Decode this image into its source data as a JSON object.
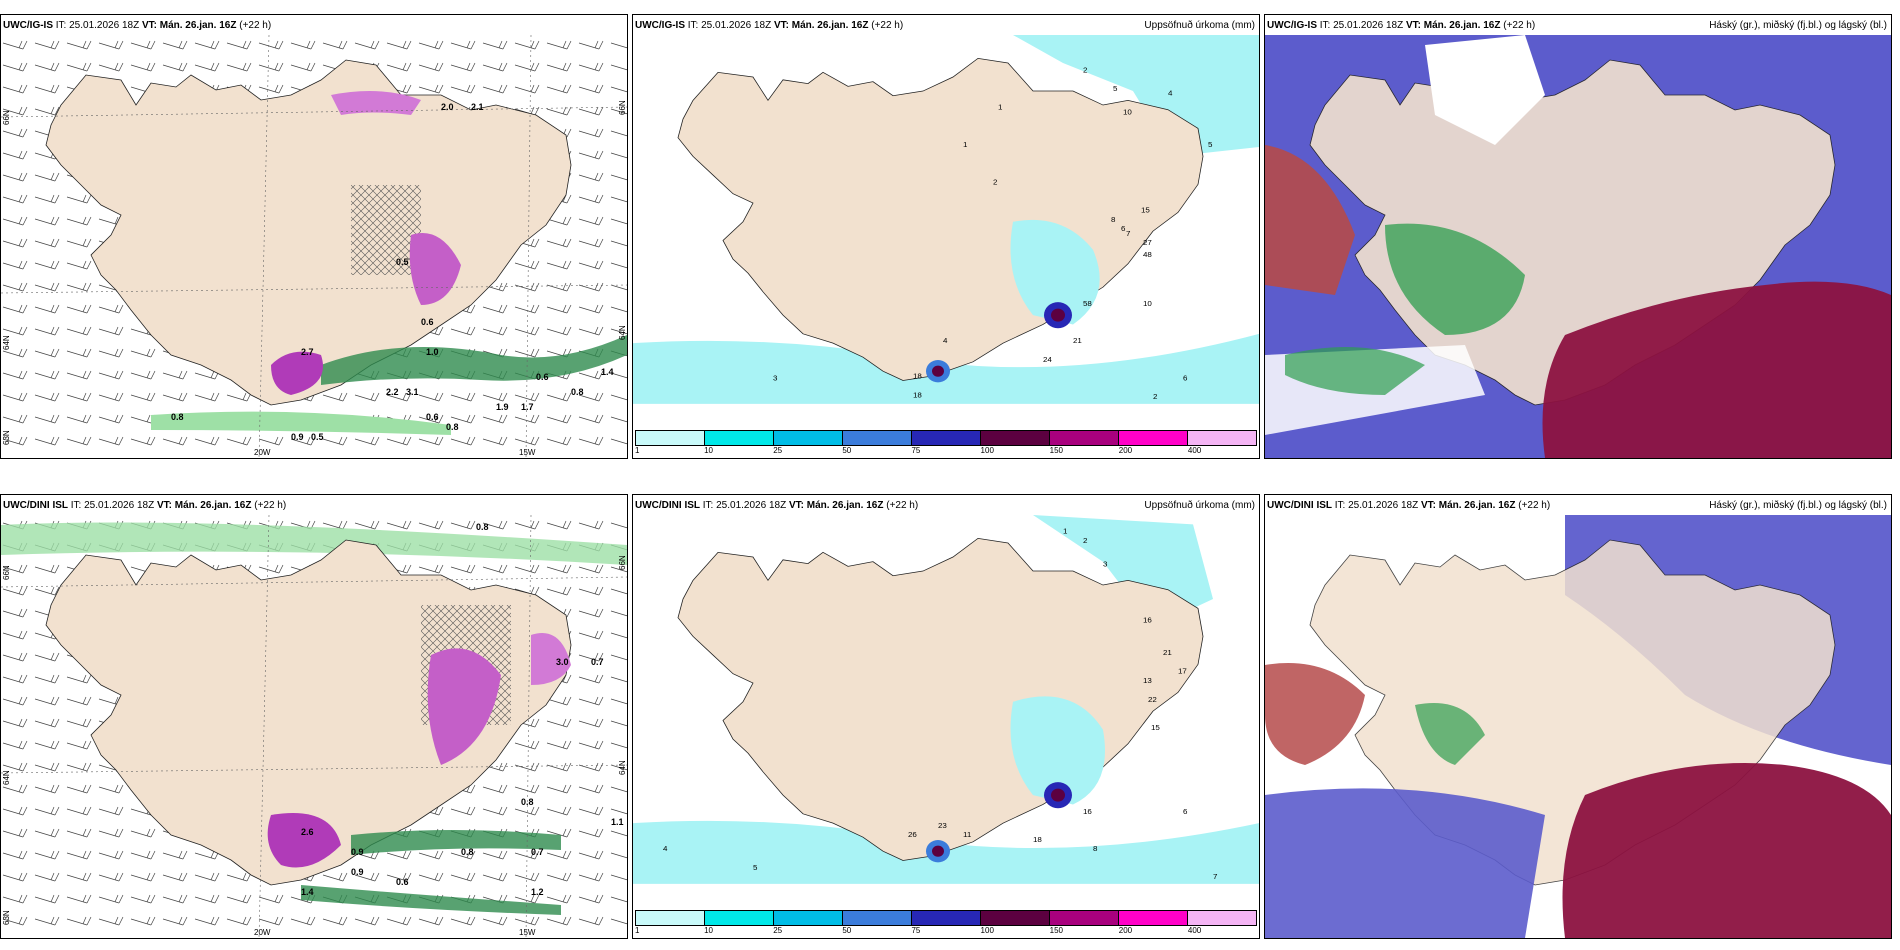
{
  "panels": [
    {
      "model": "UWC/IG-IS",
      "it_label": "IT:",
      "it": "25.01.2026 18Z",
      "vt_label": "VT:",
      "vt": "Mán. 26.jan. 16Z",
      "lead": "(+22 h)",
      "right": "",
      "axis": {
        "lat1": "66N",
        "lat2": "64N",
        "lat3": "63N",
        "lon1": "20W",
        "lon2": "15W",
        "latr": "66N",
        "latr2": "64N"
      }
    },
    {
      "model": "UWC/IG-IS",
      "it_label": "IT:",
      "it": "25.01.2026 18Z",
      "vt_label": "VT:",
      "vt": "Mán. 26.jan. 16Z",
      "lead": "(+22 h)",
      "right": "Uppsöfnuð úrkoma (mm)"
    },
    {
      "model": "UWC/IG-IS",
      "it_label": "IT:",
      "it": "25.01.2026 18Z",
      "vt_label": "VT:",
      "vt": "Mán. 26.jan. 16Z",
      "lead": "(+22 h)",
      "right": "Háský (gr.), miðský (fj.bl.) og lágský (bl.)"
    },
    {
      "model": "UWC/DINI ISL",
      "it_label": "IT:",
      "it": "25.01.2026 18Z",
      "vt_label": "VT:",
      "vt": "Mán. 26.jan. 16Z",
      "lead": "(+22 h)",
      "right": "",
      "axis": {
        "lat1": "66N",
        "lat2": "64N",
        "lat3": "63N",
        "lon1": "20W",
        "lon2": "15W",
        "latr": "66N",
        "latr2": "64N"
      }
    },
    {
      "model": "UWC/DINI ISL",
      "it_label": "IT:",
      "it": "25.01.2026 18Z",
      "vt_label": "VT:",
      "vt": "Mán. 26.jan. 16Z",
      "lead": "(+22 h)",
      "right": "Uppsöfnuð úrkoma (mm)"
    },
    {
      "model": "UWC/DINI ISL",
      "it_label": "IT:",
      "it": "25.01.2026 18Z",
      "vt_label": "VT:",
      "vt": "Mán. 26.jan. 16Z",
      "lead": "(+22 h)",
      "right": "Háský (gr.), miðský (fj.bl.) og lágský (bl.)"
    }
  ],
  "legend": {
    "ticks": [
      "1",
      "10",
      "25",
      "50",
      "75",
      "100",
      "150",
      "200",
      "400"
    ],
    "colors": [
      "#c8fafa",
      "#00e8e8",
      "#00bde6",
      "#3b7cdb",
      "#2727b5",
      "#5c0040",
      "#a8007e",
      "#ff00c8",
      "#f4b4f4"
    ]
  },
  "colors": {
    "land": "#f2e1cf",
    "sea": "#ffffff",
    "precip_light": "#a9f3f5",
    "low_cloud": "#5c5ccc",
    "mid_cloud": "#2e9e4e",
    "high_cloud": "#8c1240"
  },
  "labels": {
    "p0": [
      "2.7",
      "0.8",
      "0.9",
      "0.5",
      "2.2",
      "3.1",
      "0.6",
      "0.8",
      "1.9",
      "1.7",
      "0.8",
      "0.6",
      "1.4",
      "2.0",
      "2.1",
      "0.5",
      "0.6",
      "1.0"
    ],
    "p1": [
      "2",
      "1",
      "5",
      "10",
      "4",
      "8",
      "6",
      "15",
      "27",
      "48",
      "58",
      "21",
      "24",
      "10",
      "18",
      "4",
      "3",
      "2",
      "6",
      "5",
      "1",
      "2",
      "7",
      "18"
    ],
    "p3": [
      "0.8",
      "2.6",
      "0.9",
      "1.4",
      "0.8",
      "0.7",
      "3.0",
      "0.7",
      "1.1",
      "0.9",
      "0.6",
      "0.8",
      "1.2"
    ],
    "p4": [
      "2",
      "3",
      "1",
      "16",
      "21",
      "17",
      "22",
      "15",
      "13",
      "26",
      "23",
      "16",
      "18",
      "4",
      "5",
      "8",
      "6",
      "7",
      "11"
    ]
  }
}
